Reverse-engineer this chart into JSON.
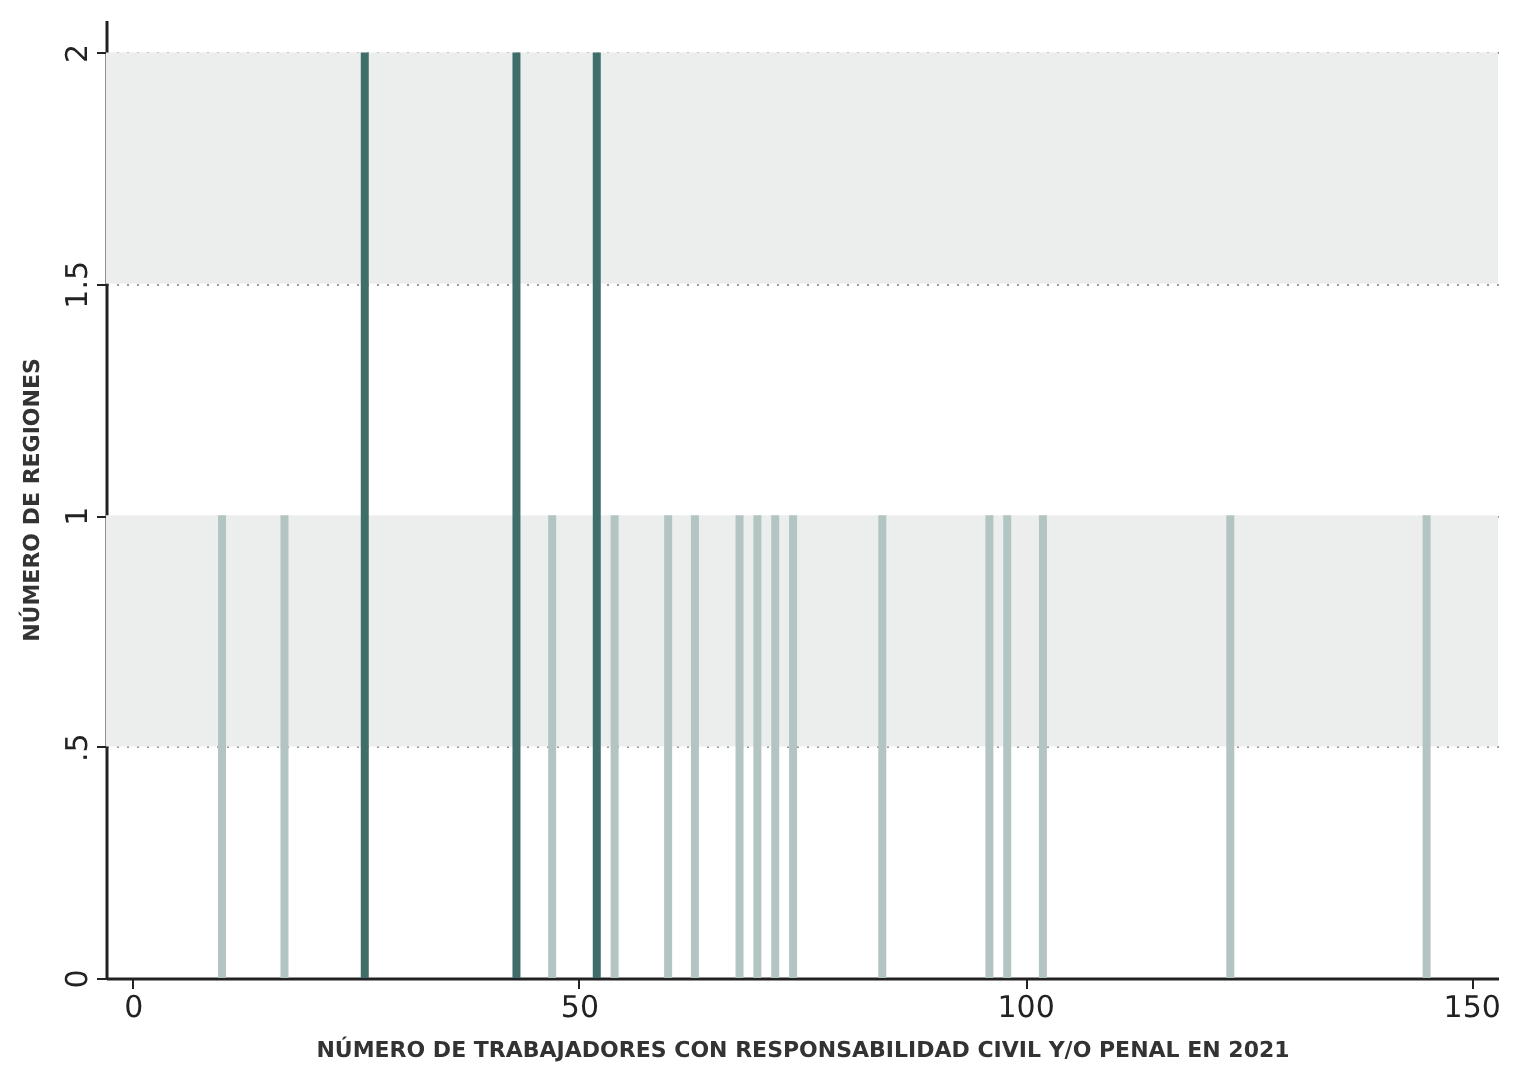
{
  "chart_data": {
    "type": "bar",
    "xlabel": "NÚMERO DE TRABAJADORES CON RESPONSABILIDAD CIVIL Y/O PENAL EN 2021",
    "ylabel": "NÚMERO DE REGIONES",
    "x": [
      10,
      17,
      26,
      43,
      47,
      52,
      54,
      60,
      63,
      68,
      70,
      72,
      74,
      84,
      96,
      98,
      102,
      123,
      145
    ],
    "values": [
      1,
      1,
      2,
      2,
      1,
      2,
      1,
      1,
      1,
      1,
      1,
      1,
      1,
      1,
      1,
      1,
      1,
      1,
      1
    ],
    "colors": [
      "#b3c5c3",
      "#b3c5c3",
      "#3f6e6a",
      "#3f6e6a",
      "#b3c5c3",
      "#3f6e6a",
      "#b3c5c3",
      "#b3c5c3",
      "#b3c5c3",
      "#b3c5c3",
      "#b3c5c3",
      "#b3c5c3",
      "#b3c5c3",
      "#b3c5c3",
      "#b3c5c3",
      "#b3c5c3",
      "#b3c5c3",
      "#b3c5c3",
      "#b3c5c3"
    ],
    "xlim": [
      -3,
      153
    ],
    "xticks": [
      0,
      50,
      100,
      150
    ],
    "ylim": [
      0,
      2.07
    ],
    "yticks": [
      0,
      {
        "value": 0.5,
        "label": ".5"
      },
      1,
      {
        "value": 1.5,
        "label": "1.5"
      },
      2
    ],
    "bands": [
      {
        "axis": "y",
        "from": 0.5,
        "to": 1,
        "color": "#eceeed"
      },
      {
        "axis": "y",
        "from": 1.5,
        "to": 2,
        "color": "#eceeed"
      }
    ],
    "grid": "y"
  }
}
